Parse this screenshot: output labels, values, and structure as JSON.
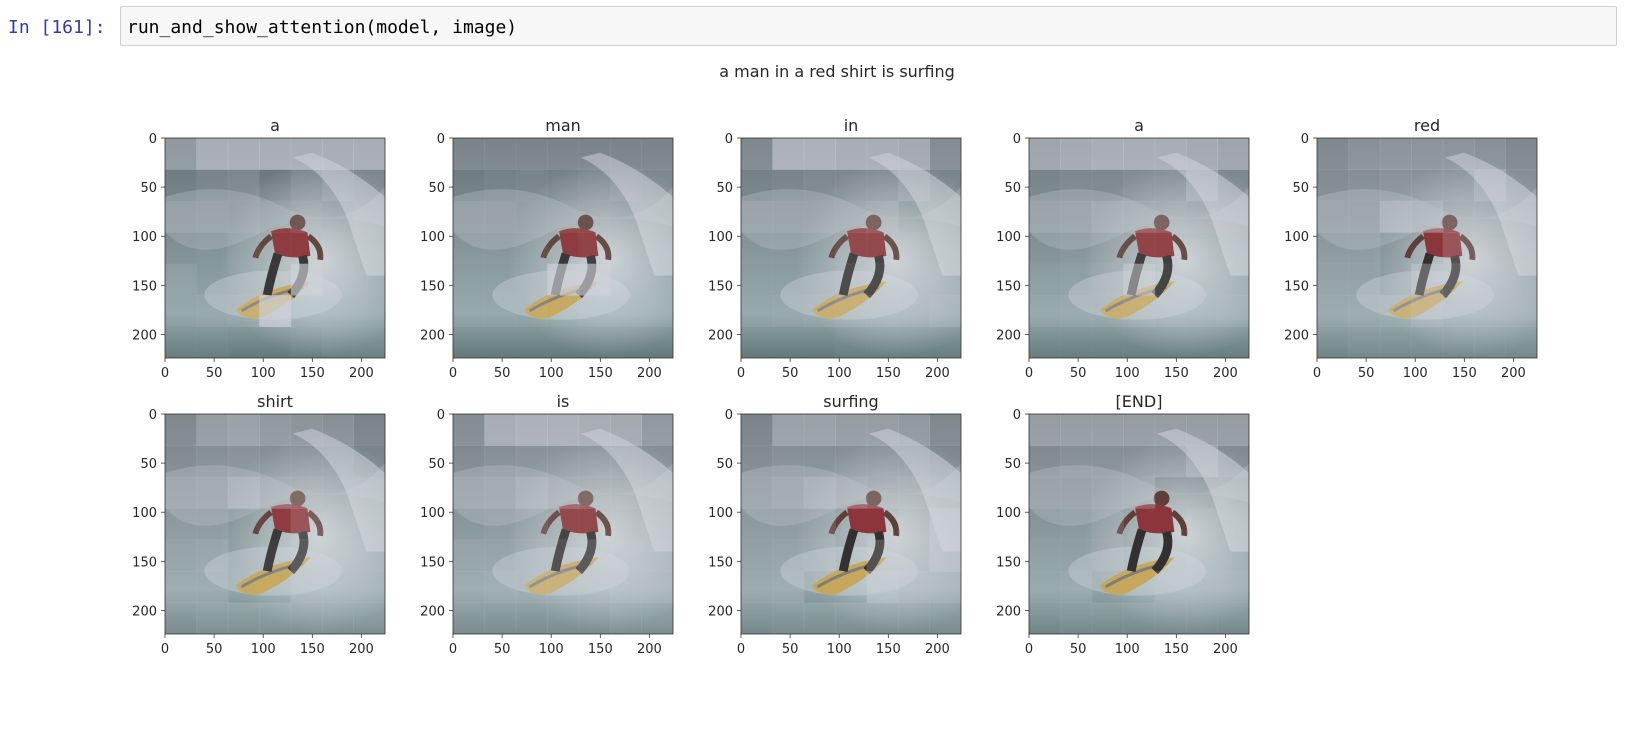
{
  "cell": {
    "prompt": "In [161]:",
    "code": "run_and_show_attention(model, image)"
  },
  "figure": {
    "suptitle": "a man in a red shirt is surfing",
    "panels": [
      {
        "title": "a",
        "attention": [
          [
            0.55,
            0.8,
            0.8,
            0.8,
            0.8,
            0.8,
            0.8
          ],
          [
            0.1,
            0.2,
            0.25,
            0.05,
            0.2,
            0.35,
            0.25
          ],
          [
            0.25,
            0.3,
            0.25,
            0.15,
            0.25,
            0.15,
            0.3
          ],
          [
            0.05,
            0.1,
            0.15,
            0.1,
            0.1,
            0.2,
            0.2
          ],
          [
            0.2,
            0.1,
            0.15,
            0.1,
            0.85,
            0.25,
            0.2
          ],
          [
            0.15,
            0.2,
            0.25,
            0.9,
            0.15,
            0.15,
            0.15
          ],
          [
            0.1,
            0.1,
            0.05,
            0.05,
            0.1,
            0.15,
            0.15
          ]
        ]
      },
      {
        "title": "man",
        "attention": [
          [
            0.3,
            0.3,
            0.3,
            0.3,
            0.3,
            0.3,
            0.3
          ],
          [
            0.1,
            0.15,
            0.2,
            0.15,
            0.2,
            0.3,
            0.25
          ],
          [
            0.25,
            0.25,
            0.2,
            0.2,
            0.2,
            0.15,
            0.2
          ],
          [
            0.15,
            0.15,
            0.15,
            0.1,
            0.15,
            0.15,
            0.15
          ],
          [
            0.15,
            0.15,
            0.15,
            0.85,
            0.85,
            0.15,
            0.15
          ],
          [
            0.15,
            0.15,
            0.15,
            0.1,
            0.15,
            0.15,
            0.15
          ],
          [
            0.05,
            0.05,
            0.05,
            0.05,
            0.05,
            0.05,
            0.05
          ]
        ]
      },
      {
        "title": "in",
        "attention": [
          [
            0.35,
            0.85,
            0.85,
            0.8,
            0.8,
            0.75,
            0.4
          ],
          [
            0.15,
            0.2,
            0.25,
            0.25,
            0.25,
            0.4,
            0.2
          ],
          [
            0.3,
            0.3,
            0.3,
            0.3,
            0.35,
            0.1,
            0.2
          ],
          [
            0.15,
            0.15,
            0.15,
            0.2,
            0.2,
            0.2,
            0.2
          ],
          [
            0.15,
            0.15,
            0.15,
            0.25,
            0.25,
            0.25,
            0.3
          ],
          [
            0.15,
            0.2,
            0.25,
            0.3,
            0.3,
            0.25,
            0.35
          ],
          [
            0.05,
            0.05,
            0.05,
            0.1,
            0.1,
            0.1,
            0.1
          ]
        ]
      },
      {
        "title": "a",
        "attention": [
          [
            0.7,
            0.75,
            0.8,
            0.8,
            0.8,
            0.75,
            0.7
          ],
          [
            0.2,
            0.25,
            0.25,
            0.3,
            0.3,
            0.6,
            0.25
          ],
          [
            0.3,
            0.35,
            0.45,
            0.4,
            0.35,
            0.3,
            0.3
          ],
          [
            0.1,
            0.15,
            0.2,
            0.15,
            0.15,
            0.15,
            0.15
          ],
          [
            0.15,
            0.2,
            0.25,
            0.7,
            0.2,
            0.2,
            0.2
          ],
          [
            0.2,
            0.25,
            0.25,
            0.3,
            0.25,
            0.2,
            0.25
          ],
          [
            0.1,
            0.1,
            0.1,
            0.1,
            0.1,
            0.1,
            0.1
          ]
        ]
      },
      {
        "title": "red",
        "attention": [
          [
            0.35,
            0.45,
            0.5,
            0.5,
            0.5,
            0.45,
            0.35
          ],
          [
            0.3,
            0.35,
            0.4,
            0.4,
            0.4,
            0.65,
            0.35
          ],
          [
            0.35,
            0.35,
            0.65,
            0.55,
            0.35,
            0.35,
            0.3
          ],
          [
            0.25,
            0.25,
            0.05,
            0.05,
            0.3,
            0.3,
            0.3
          ],
          [
            0.25,
            0.25,
            0.05,
            0.45,
            0.4,
            0.3,
            0.3
          ],
          [
            0.25,
            0.3,
            0.35,
            0.45,
            0.3,
            0.3,
            0.3
          ],
          [
            0.2,
            0.25,
            0.25,
            0.25,
            0.25,
            0.25,
            0.25
          ]
        ]
      },
      {
        "title": "shirt",
        "attention": [
          [
            0.35,
            0.6,
            0.65,
            0.55,
            0.5,
            0.45,
            0.3
          ],
          [
            0.3,
            0.35,
            0.4,
            0.35,
            0.35,
            0.35,
            0.2
          ],
          [
            0.4,
            0.45,
            0.65,
            0.45,
            0.4,
            0.35,
            0.35
          ],
          [
            0.25,
            0.25,
            0.1,
            0.1,
            0.3,
            0.35,
            0.35
          ],
          [
            0.3,
            0.35,
            0.1,
            0.15,
            0.35,
            0.4,
            0.4
          ],
          [
            0.3,
            0.3,
            0.1,
            0.1,
            0.35,
            0.35,
            0.35
          ],
          [
            0.3,
            0.35,
            0.35,
            0.35,
            0.35,
            0.35,
            0.35
          ]
        ]
      },
      {
        "title": "is",
        "attention": [
          [
            0.4,
            0.8,
            0.85,
            0.85,
            0.8,
            0.75,
            0.55
          ],
          [
            0.3,
            0.35,
            0.4,
            0.4,
            0.4,
            0.4,
            0.35
          ],
          [
            0.4,
            0.45,
            0.6,
            0.45,
            0.4,
            0.4,
            0.4
          ],
          [
            0.2,
            0.25,
            0.3,
            0.2,
            0.2,
            0.3,
            0.4
          ],
          [
            0.3,
            0.3,
            0.35,
            0.3,
            0.35,
            0.5,
            0.5
          ],
          [
            0.3,
            0.35,
            0.35,
            0.35,
            0.35,
            0.45,
            0.45
          ],
          [
            0.3,
            0.3,
            0.3,
            0.3,
            0.3,
            0.35,
            0.35
          ]
        ]
      },
      {
        "title": "surfing",
        "attention": [
          [
            0.3,
            0.65,
            0.65,
            0.6,
            0.6,
            0.55,
            0.35
          ],
          [
            0.3,
            0.35,
            0.35,
            0.35,
            0.35,
            0.35,
            0.25
          ],
          [
            0.35,
            0.45,
            0.6,
            0.45,
            0.35,
            0.4,
            0.35
          ],
          [
            0.25,
            0.25,
            0.25,
            0.05,
            0.05,
            0.3,
            0.7
          ],
          [
            0.25,
            0.3,
            0.3,
            0.05,
            0.3,
            0.3,
            0.7
          ],
          [
            0.25,
            0.3,
            0.05,
            0.05,
            0.55,
            0.4,
            0.4
          ],
          [
            0.25,
            0.3,
            0.3,
            0.3,
            0.3,
            0.3,
            0.3
          ]
        ]
      },
      {
        "title": "[END]",
        "attention": [
          [
            0.6,
            0.6,
            0.6,
            0.6,
            0.6,
            0.6,
            0.6
          ],
          [
            0.3,
            0.35,
            0.35,
            0.35,
            0.35,
            0.6,
            0.3
          ],
          [
            0.3,
            0.3,
            0.35,
            0.35,
            0.05,
            0.05,
            0.1
          ],
          [
            0.15,
            0.2,
            0.25,
            0.05,
            0.05,
            0.2,
            0.15
          ],
          [
            0.2,
            0.2,
            0.25,
            0.05,
            0.05,
            0.2,
            0.2
          ],
          [
            0.2,
            0.25,
            0.05,
            0.05,
            0.25,
            0.25,
            0.25
          ],
          [
            0.2,
            0.25,
            0.25,
            0.25,
            0.25,
            0.25,
            0.25
          ]
        ]
      }
    ],
    "x_ticks": [
      "0",
      "50",
      "100",
      "150",
      "200"
    ],
    "y_ticks": [
      "0",
      "50",
      "100",
      "150",
      "200"
    ],
    "grid": "off",
    "colors": {
      "overlay": "#d0d3da",
      "text": "#262626"
    }
  },
  "chart_data": {
    "type": "heatmap",
    "title": "a man in a red shirt is surfing",
    "subplots": [
      "a",
      "man",
      "in",
      "a",
      "red",
      "shirt",
      "is",
      "surfing",
      "[END]"
    ],
    "grid_size": [
      7,
      7
    ],
    "xlim": [
      0,
      224
    ],
    "ylim": [
      224,
      0
    ],
    "x_ticks": [
      0,
      50,
      100,
      150,
      200
    ],
    "y_ticks": [
      0,
      50,
      100,
      150,
      200
    ]
  }
}
